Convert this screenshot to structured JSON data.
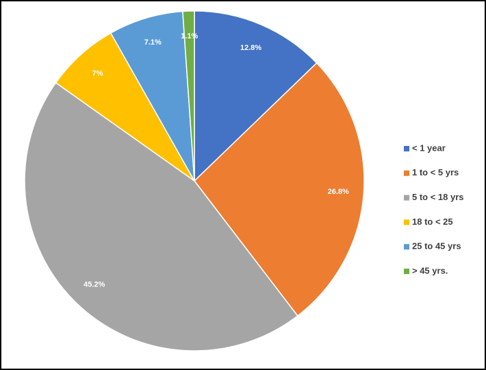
{
  "chart_data": {
    "type": "pie",
    "categories": [
      "< 1 year",
      "1 to < 5 yrs",
      "5 to < 18 yrs",
      "18 to < 25",
      "25 to 45 yrs",
      "> 45 yrs."
    ],
    "values": [
      12.8,
      26.8,
      45.2,
      7,
      7.1,
      1.1
    ],
    "value_labels": [
      "12.8%",
      "26.8%",
      "45.2%",
      "7%",
      "7.1%",
      "1.1%"
    ],
    "colors": [
      "#4472c4",
      "#ed7d31",
      "#a5a5a5",
      "#ffc000",
      "#5b9bd5",
      "#70ad47"
    ],
    "legend": "right"
  }
}
